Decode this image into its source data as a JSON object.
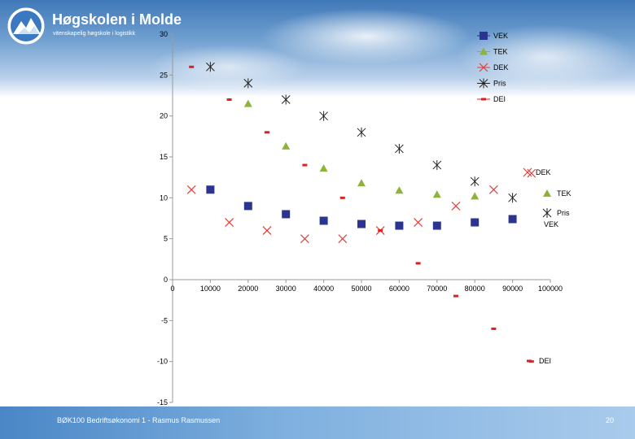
{
  "header": {
    "logo_name": "Høgskolen i Molde",
    "logo_tagline": "vitenskapelig høgskole i logistikk"
  },
  "footer": {
    "text": "BØK100 Bedriftsøkonomi 1 - Rasmus Rasmussen",
    "page": "20"
  },
  "colors": {
    "VEK": "#2b3591",
    "TEK": "#8db33a",
    "DEK": "#e0403a",
    "Pris": "#222222",
    "DEI": "#e02020"
  },
  "chart_data": {
    "type": "scatter",
    "xlim": [
      0,
      100000
    ],
    "ylim": [
      -15,
      30
    ],
    "x_ticks": [
      "0",
      "10000",
      "20000",
      "30000",
      "40000",
      "50000",
      "60000",
      "70000",
      "80000",
      "90000",
      "100000"
    ],
    "y_ticks": [
      "30",
      "25",
      "20",
      "15",
      "10",
      "5",
      "0",
      "-5",
      "-10",
      "-15"
    ],
    "grid": false,
    "legend": {
      "position": "top-right",
      "entries": [
        "VEK",
        "TEK",
        "DEK",
        "Pris",
        "DEI"
      ]
    },
    "series": [
      {
        "name": "VEK",
        "marker": "square",
        "points": [
          [
            10000,
            11
          ],
          [
            20000,
            9
          ],
          [
            30000,
            8
          ],
          [
            40000,
            7.2
          ],
          [
            50000,
            6.8
          ],
          [
            60000,
            6.6
          ],
          [
            70000,
            6.6
          ],
          [
            80000,
            7
          ],
          [
            90000,
            7.4
          ]
        ],
        "end_label": "VEK"
      },
      {
        "name": "TEK",
        "marker": "triangle",
        "points": [
          [
            20000,
            21.5
          ],
          [
            30000,
            16.3
          ],
          [
            40000,
            13.6
          ],
          [
            50000,
            11.8
          ],
          [
            60000,
            10.9
          ],
          [
            70000,
            10.4
          ],
          [
            80000,
            10.2
          ]
        ],
        "end_label": "TEK"
      },
      {
        "name": "DEK",
        "marker": "x",
        "points": [
          [
            5000,
            11
          ],
          [
            15000,
            7
          ],
          [
            25000,
            6
          ],
          [
            35000,
            5
          ],
          [
            45000,
            5
          ],
          [
            55000,
            6
          ],
          [
            65000,
            7
          ],
          [
            75000,
            9
          ],
          [
            85000,
            11
          ],
          [
            95000,
            13
          ]
        ],
        "end_label": "DEK"
      },
      {
        "name": "Pris",
        "marker": "asterisk",
        "points": [
          [
            10000,
            26
          ],
          [
            20000,
            24
          ],
          [
            30000,
            22
          ],
          [
            40000,
            20
          ],
          [
            50000,
            18
          ],
          [
            60000,
            16
          ],
          [
            70000,
            14
          ],
          [
            80000,
            12
          ],
          [
            90000,
            10
          ]
        ],
        "end_label": "Pris"
      },
      {
        "name": "DEI",
        "marker": "dash",
        "points": [
          [
            5000,
            26
          ],
          [
            15000,
            22
          ],
          [
            25000,
            18
          ],
          [
            35000,
            14
          ],
          [
            45000,
            10
          ],
          [
            55000,
            6
          ],
          [
            65000,
            2
          ],
          [
            75000,
            -2
          ],
          [
            85000,
            -6
          ],
          [
            95000,
            -10
          ]
        ],
        "end_label": "DEI"
      }
    ]
  }
}
